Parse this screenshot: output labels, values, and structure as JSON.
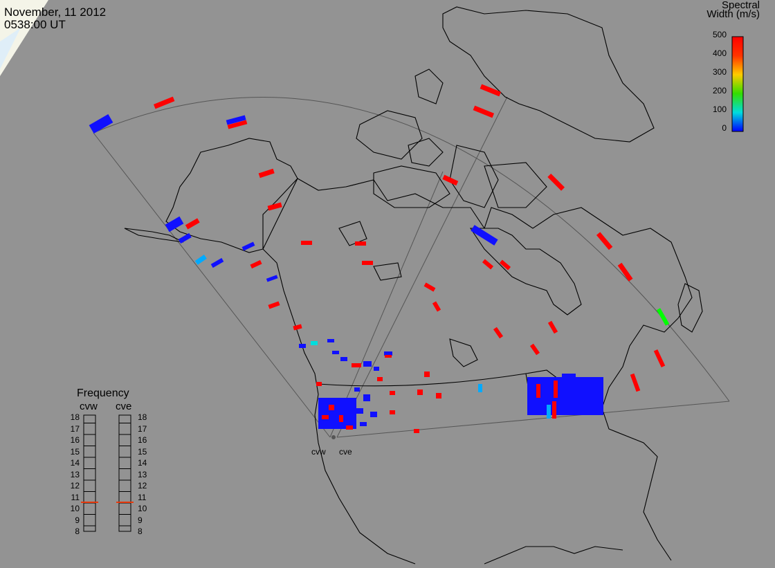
{
  "header": {
    "date": "November, 11 2012",
    "time": "0538:00 UT"
  },
  "colorbar": {
    "title_line1": "Spectral",
    "title_line2": "Width (m/s)",
    "ticks": [
      "500",
      "400",
      "300",
      "200",
      "100",
      "0"
    ],
    "min": 0,
    "max": 500
  },
  "frequency_panel": {
    "title": "Frequency",
    "radars": [
      {
        "name": "cvw",
        "selected_freq": 10.8
      },
      {
        "name": "cve",
        "selected_freq": 10.8
      }
    ],
    "ticks": [
      "18",
      "17",
      "16",
      "15",
      "14",
      "13",
      "12",
      "11",
      "10",
      "9",
      "8"
    ],
    "marker_color": "#e83a0c"
  },
  "sites": [
    {
      "name": "cvw"
    },
    {
      "name": "cve"
    }
  ],
  "colors": {
    "background": "#939393",
    "high_width": "#ff0000",
    "low_width": "#1010ff",
    "mid_low": "#00aaff",
    "mid": "#00ff00"
  }
}
